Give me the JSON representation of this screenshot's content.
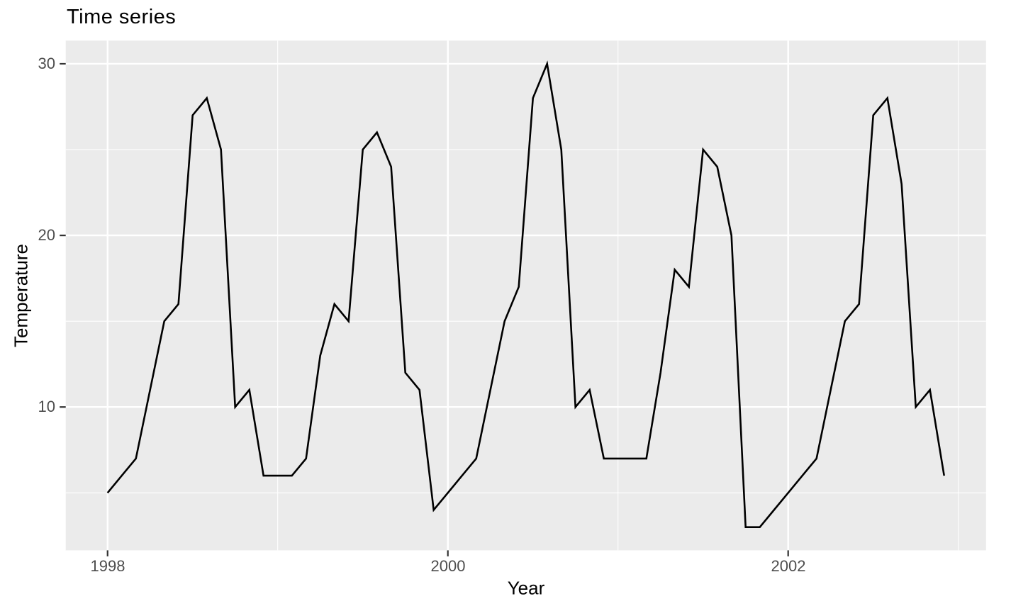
{
  "chart": {
    "title": "Time series",
    "x_axis_title": "Year",
    "y_axis_title": "Temperature"
  },
  "chart_data": {
    "type": "line",
    "title": "Time series",
    "xlabel": "Year",
    "ylabel": "Temperature",
    "frequency": "monthly",
    "start": "1998-01",
    "end": "2002-12",
    "series": [
      {
        "name": "Temperature",
        "values": [
          5,
          6,
          7,
          11,
          15,
          16,
          27,
          28,
          25,
          10,
          11,
          6,
          6,
          6,
          7,
          13,
          16,
          15,
          25,
          26,
          24,
          12,
          11,
          4,
          5,
          6,
          7,
          11,
          15,
          17,
          28,
          30,
          25,
          10,
          11,
          7,
          7,
          7,
          7,
          12,
          18,
          17,
          25,
          24,
          20,
          3,
          3,
          4,
          5,
          6,
          7,
          11,
          15,
          16,
          27,
          28,
          23,
          10,
          11,
          6
        ]
      }
    ],
    "values_by_year": {
      "1998": [
        5,
        6,
        7,
        11,
        15,
        16,
        27,
        28,
        25,
        10,
        11,
        6
      ],
      "1999": [
        6,
        6,
        7,
        13,
        16,
        15,
        25,
        26,
        24,
        12,
        11,
        4
      ],
      "2000": [
        5,
        6,
        7,
        11,
        15,
        17,
        28,
        30,
        25,
        10,
        11,
        7
      ],
      "2001": [
        7,
        7,
        7,
        12,
        18,
        17,
        25,
        24,
        20,
        3,
        3,
        4
      ],
      "2002": [
        5,
        6,
        7,
        11,
        15,
        16,
        27,
        28,
        23,
        10,
        11,
        6
      ]
    },
    "x_ticks": [
      "1998",
      "2000",
      "2002"
    ],
    "y_ticks": [
      "30",
      "20",
      "10"
    ],
    "x_tick_values": [
      1998,
      2000,
      2002
    ],
    "y_tick_values": [
      30,
      20,
      10
    ],
    "x_minor_values": [
      1999,
      2001,
      2003
    ],
    "y_minor_values": [
      25,
      15,
      5
    ],
    "xlim": [
      1997.754,
      2003.163
    ],
    "ylim": [
      1.65,
      31.35
    ],
    "grid": true,
    "legend_position": "none",
    "colors": {
      "panel_background": "#EBEBEB",
      "grid": "#FFFFFF",
      "line": "#000000",
      "tick_text": "#4D4D4D",
      "tick_mark": "#333333",
      "title_text": "#000000"
    }
  }
}
